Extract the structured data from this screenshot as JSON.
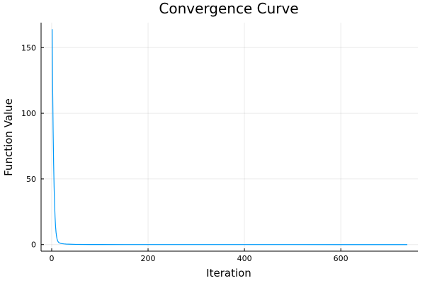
{
  "chart_data": {
    "type": "line",
    "title": "Convergence Curve",
    "xlabel": "Iteration",
    "ylabel": "Function Value",
    "xlim": [
      -22,
      760
    ],
    "ylim": [
      -5,
      169
    ],
    "xticks": [
      0,
      200,
      400,
      600
    ],
    "yticks": [
      0,
      50,
      100,
      150
    ],
    "grid": true,
    "legend": "none",
    "series": [
      {
        "color": "#009AFA",
        "x": [
          1,
          2,
          3,
          4,
          5,
          6,
          7,
          8,
          9,
          10,
          11,
          12,
          13,
          14,
          15,
          16,
          18,
          20,
          25,
          30,
          40,
          50,
          60,
          80,
          100,
          150,
          200,
          300,
          400,
          500,
          600,
          700,
          738
        ],
        "y": [
          164,
          120,
          87,
          62,
          44,
          31,
          21,
          14,
          9.5,
          6.5,
          4.5,
          3.2,
          2.4,
          1.9,
          1.5,
          1.3,
          1.0,
          0.8,
          0.55,
          0.4,
          0.25,
          0.15,
          0.1,
          0.06,
          0.04,
          0.02,
          0.01,
          0.005,
          0.003,
          0.002,
          0.001,
          0.001,
          0.001
        ]
      }
    ]
  }
}
